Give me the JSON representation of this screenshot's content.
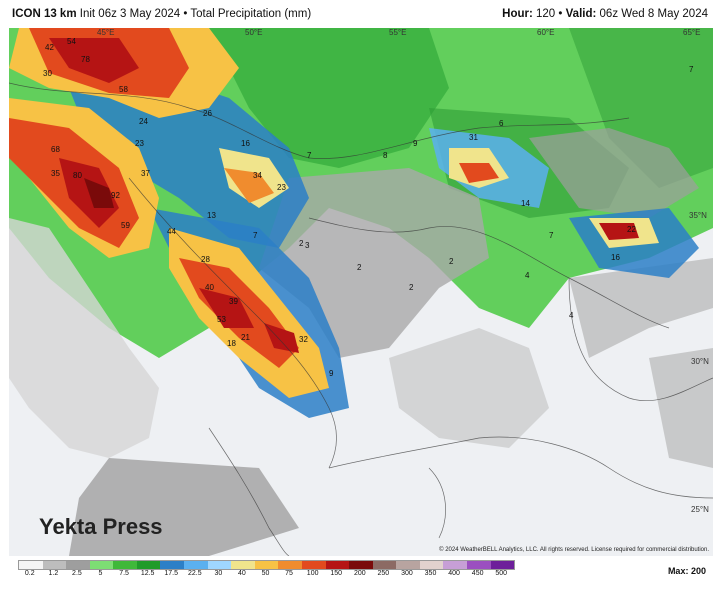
{
  "header": {
    "model": "ICON 13 km",
    "init": "Init 06z 3 May 2024",
    "sep": "•",
    "product": "Total Precipitation (mm)",
    "hour_label": "Hour:",
    "hour_value": "120",
    "valid_label": "Valid:",
    "valid_value": "06z Wed 8 May 2024"
  },
  "map": {
    "grid_labels": {
      "top": [
        "45°E",
        "50°E",
        "55°E",
        "60°E",
        "65°E"
      ],
      "right": [
        "35°N",
        "30°N",
        "25°N"
      ]
    },
    "values": [
      {
        "v": "42"
      },
      {
        "v": "54"
      },
      {
        "v": "78"
      },
      {
        "v": "30"
      },
      {
        "v": "58"
      },
      {
        "v": "26"
      },
      {
        "v": "24"
      },
      {
        "v": "23"
      },
      {
        "v": "68"
      },
      {
        "v": "80"
      },
      {
        "v": "92"
      },
      {
        "v": "37"
      },
      {
        "v": "35"
      },
      {
        "v": "34"
      },
      {
        "v": "23"
      },
      {
        "v": "16"
      },
      {
        "v": "13"
      },
      {
        "v": "59"
      },
      {
        "v": "44"
      },
      {
        "v": "28"
      },
      {
        "v": "40"
      },
      {
        "v": "39"
      },
      {
        "v": "53"
      },
      {
        "v": "18"
      },
      {
        "v": "21"
      },
      {
        "v": "32"
      },
      {
        "v": "9"
      },
      {
        "v": "7"
      },
      {
        "v": "8"
      },
      {
        "v": "9"
      },
      {
        "v": "6"
      },
      {
        "v": "31"
      },
      {
        "v": "14"
      },
      {
        "v": "7"
      },
      {
        "v": "22"
      },
      {
        "v": "16"
      },
      {
        "v": "4"
      },
      {
        "v": "3"
      },
      {
        "v": "2"
      },
      {
        "v": "2"
      },
      {
        "v": "7"
      },
      {
        "v": "2"
      },
      {
        "v": "2"
      },
      {
        "v": "4"
      },
      {
        "v": "7"
      }
    ],
    "copyright": "© 2024 WeatherBELL Analytics, LLC. All rights reserved. License required for commercial distribution."
  },
  "watermark": {
    "text": "Yekta Press"
  },
  "legend": {
    "ticks": [
      "0.2",
      "1.2",
      "2.5",
      "5",
      "7.5",
      "12.5",
      "17.5",
      "22.5",
      "30",
      "40",
      "50",
      "75",
      "100",
      "150",
      "200",
      "250",
      "300",
      "350",
      "400",
      "450",
      "500"
    ],
    "colors": [
      "#f4f4f4",
      "#bdbdbd",
      "#9e9e9e",
      "#7dde74",
      "#3fb83a",
      "#1f9b2a",
      "#2c7fc7",
      "#5bb0f0",
      "#9fd6ff",
      "#f0e48c",
      "#f7c245",
      "#f08c2e",
      "#e24a1e",
      "#b51414",
      "#7a0a0a",
      "#8c6a64",
      "#b8a4a0",
      "#e2d2ce",
      "#c79fd6",
      "#9b4fc0",
      "#6d1f9a"
    ],
    "max_label": "Max:",
    "max_value": "200"
  }
}
